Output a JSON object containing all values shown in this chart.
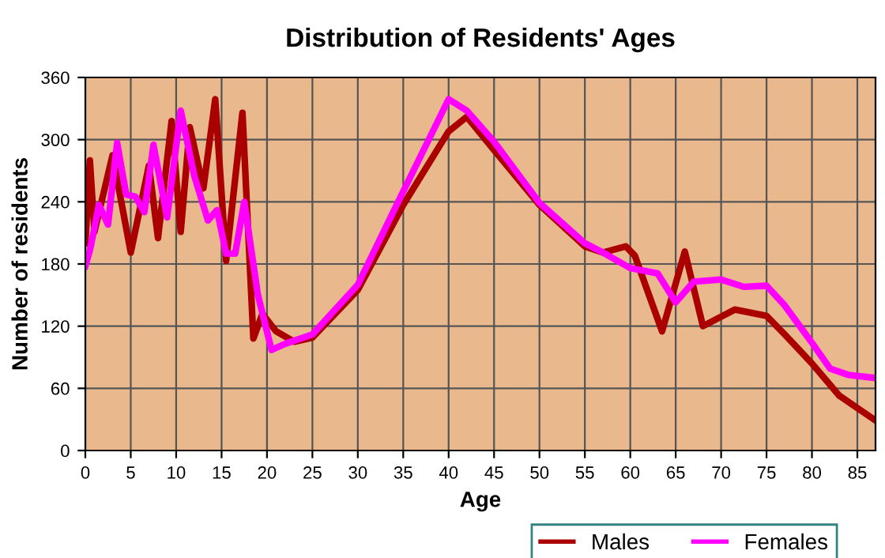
{
  "chart_data": {
    "type": "line",
    "title": "Distribution of Residents' Ages",
    "xlabel": "Age",
    "ylabel": "Number of residents",
    "xlim": [
      0,
      87
    ],
    "xticks": [
      0,
      5,
      10,
      15,
      20,
      25,
      30,
      35,
      40,
      45,
      50,
      55,
      60,
      65,
      70,
      75,
      80,
      85
    ],
    "ylim": [
      0,
      360
    ],
    "yticks": [
      0,
      60,
      120,
      180,
      240,
      300,
      360
    ],
    "grid": true,
    "legend": "bottom",
    "marker": "none",
    "line_style": "solid",
    "series": [
      {
        "name": "Males",
        "color": "#aa0000",
        "x": [
          0,
          0.5,
          1,
          3,
          5,
          7,
          8,
          9.5,
          10.5,
          11.5,
          13,
          14.3,
          15.5,
          17.3,
          18.5,
          19.5,
          21,
          23,
          25,
          30,
          35,
          40,
          42,
          45,
          50,
          55,
          57,
          59.5,
          60.5,
          63.5,
          66,
          68,
          71.5,
          75,
          77,
          80,
          83,
          87
        ],
        "values": [
          200,
          280,
          211,
          285,
          191,
          275,
          205,
          318,
          211,
          312,
          253,
          339,
          183,
          326,
          108,
          132,
          115,
          105,
          109,
          155,
          237,
          308,
          322,
          290,
          237,
          197,
          191,
          197,
          188,
          115,
          192,
          120,
          136,
          130,
          112,
          84,
          53,
          29
        ]
      },
      {
        "name": "Females",
        "color": "#ff00ff",
        "x": [
          0,
          0.5,
          1.5,
          2.5,
          3.5,
          4.5,
          5.5,
          6.5,
          7.5,
          9,
          10.5,
          12,
          13.5,
          14.5,
          15.5,
          16.5,
          17.5,
          19,
          20.5,
          22,
          25,
          30,
          35,
          40,
          42,
          45,
          50,
          55,
          57,
          60,
          63,
          65,
          67,
          70,
          72.5,
          75,
          77,
          80,
          82,
          84,
          87
        ],
        "values": [
          178,
          193,
          237,
          218,
          297,
          247,
          245,
          230,
          295,
          225,
          328,
          265,
          222,
          232,
          190,
          190,
          240,
          150,
          97,
          103,
          112,
          160,
          250,
          339,
          328,
          298,
          239,
          200,
          191,
          176,
          171,
          143,
          163,
          165,
          158,
          159,
          140,
          104,
          79,
          73,
          70
        ]
      }
    ]
  }
}
